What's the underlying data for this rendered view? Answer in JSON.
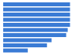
{
  "chart_data": {
    "type": "bar",
    "orientation": "horizontal",
    "categories": [
      null,
      null,
      null,
      null,
      null,
      null,
      null,
      null,
      null,
      null
    ],
    "values": [
      87,
      87,
      87,
      87,
      87,
      84,
      82,
      63,
      57,
      32
    ],
    "color": "#3a7bd5",
    "xlim": [
      0,
      100
    ],
    "tick_labels": false,
    "grid": false
  }
}
